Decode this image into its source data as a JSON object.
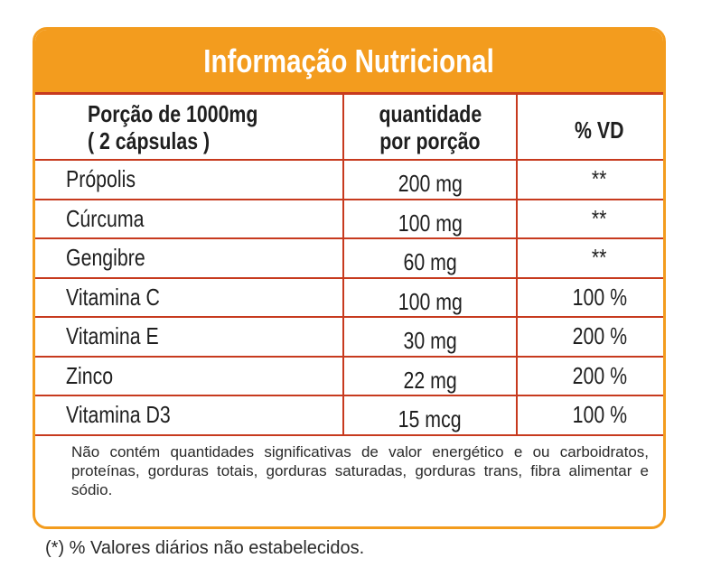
{
  "title": "Informação Nutricional",
  "header": {
    "portion_line1": "Porção de 1000mg",
    "portion_line2": "( 2 cápsulas )",
    "qty_line1": "quantidade",
    "qty_line2": "por porção",
    "vd": "% VD"
  },
  "rows": [
    {
      "name": "Própolis",
      "qty": "200 mg",
      "vd": "**"
    },
    {
      "name": "Cúrcuma",
      "qty": "100 mg",
      "vd": "**"
    },
    {
      "name": "Gengibre",
      "qty": "60 mg",
      "vd": "**"
    },
    {
      "name": "Vitamina C",
      "qty": "100 mg",
      "vd": "100 %"
    },
    {
      "name": "Vitamina E",
      "qty": "30 mg",
      "vd": "200 %"
    },
    {
      "name": "Zinco",
      "qty": "22 mg",
      "vd": "200 %"
    },
    {
      "name": "Vitamina D3",
      "qty": "15 mcg",
      "vd": "100 %"
    }
  ],
  "note": "Não contém quantidades significativas de valor energético e ou carboidratos, proteínas, gorduras totais, gorduras saturadas, gorduras trans, fibra alimentar e sódio.",
  "footnote": "(*) % Valores diários não estabelecidos.",
  "colors": {
    "accent": "#f39c1e",
    "lines": "#c73a1e"
  }
}
